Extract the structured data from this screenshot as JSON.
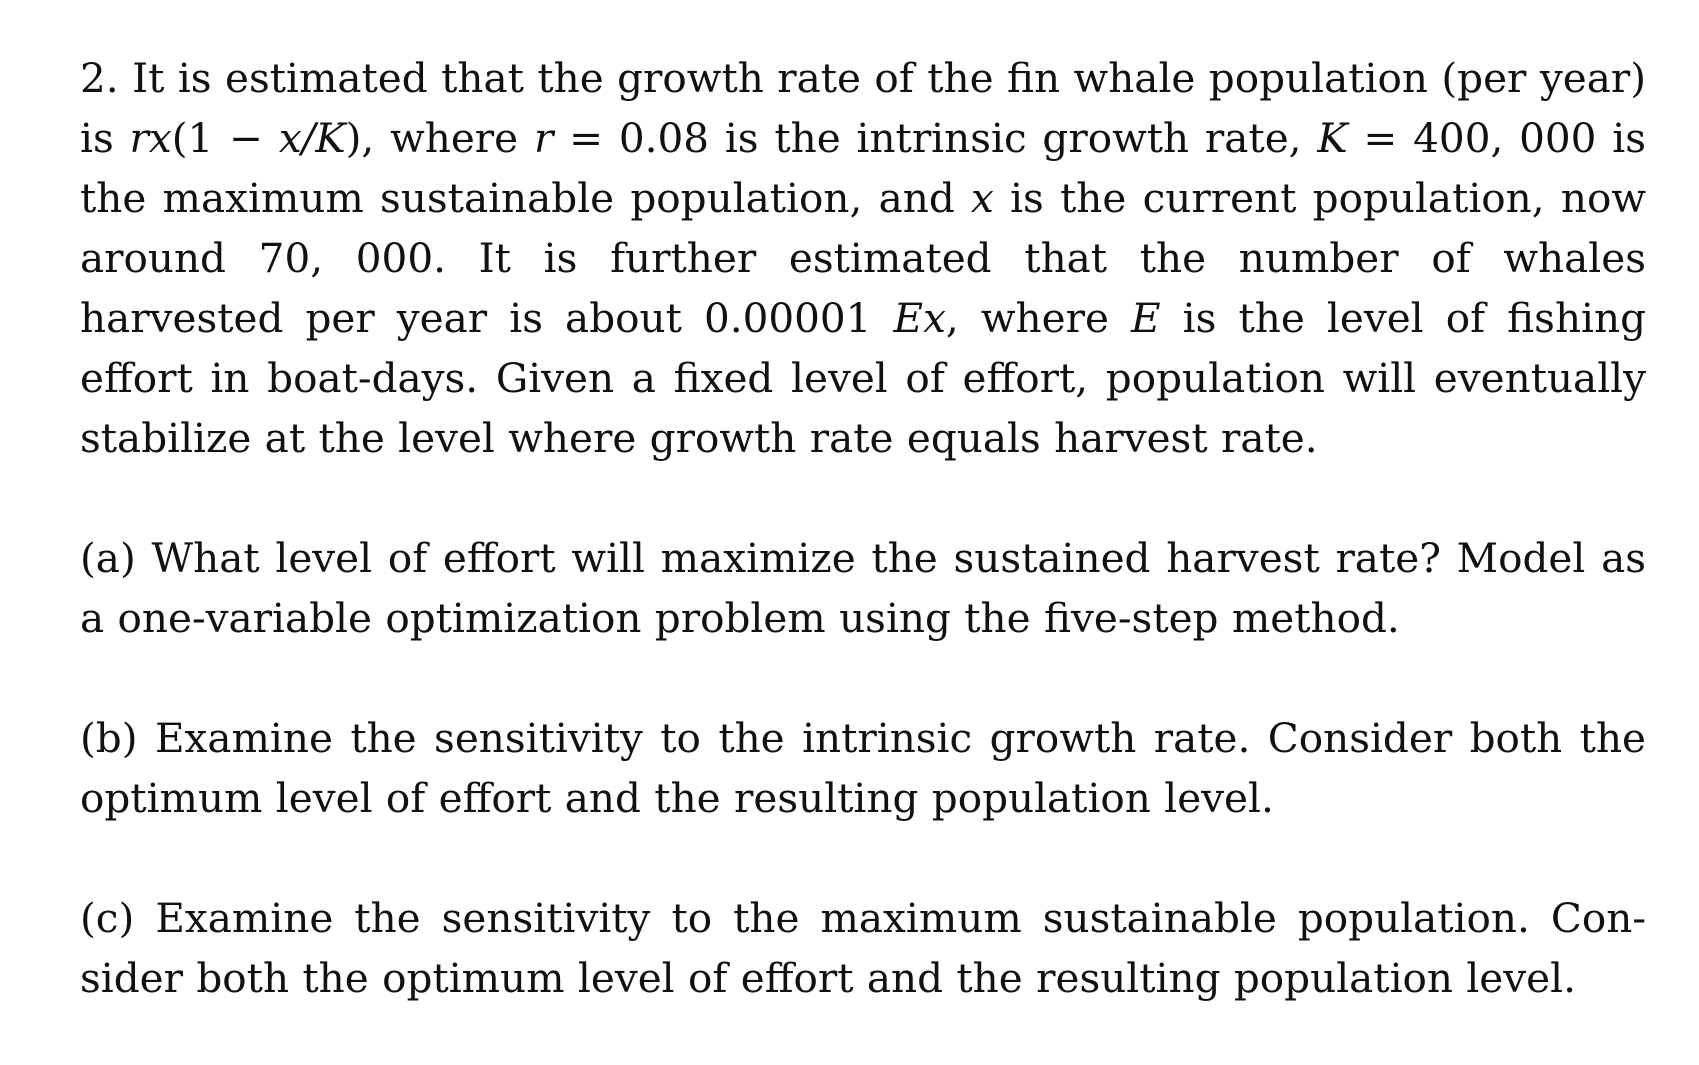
{
  "problem": {
    "number": "2.",
    "intro": {
      "t1": "It is estimated that the growth rate of the fin whale population (per year) is ",
      "m1": "rx",
      "t2": "(1 − ",
      "m2": "x/K",
      "t3": "), where ",
      "m3": "r",
      "t4": " = 0.08 is the intrinsic growth rate, ",
      "m4": "K",
      "t5": " = 400, 000 is the maximum sustainable population, and ",
      "m5": "x",
      "t6": " is the current population, now around 70, 000. It is further estimated that the number of whales harvested per year is about 0.00001 ",
      "m6": "Ex",
      "t7": ", where ",
      "m7": "E",
      "t8": " is the level of fishing effort in boat-days. Given a fixed level of effort, population will eventually stabilize at the level where growth rate equals harvest rate."
    },
    "parts": [
      {
        "label": "(a)",
        "text": "What level of effort will maximize the sustained harvest rate? Model as a one-variable optimization problem using the five-step method."
      },
      {
        "label": "(b)",
        "text": "Examine the sensitivity to the intrinsic growth rate. Consider both the optimum level of effort and the resulting population level."
      },
      {
        "label": "(c)",
        "text": "Examine the sensitivity to the maximum sustainable population. Con­sider both the optimum level of effort and the resulting population level."
      }
    ]
  }
}
